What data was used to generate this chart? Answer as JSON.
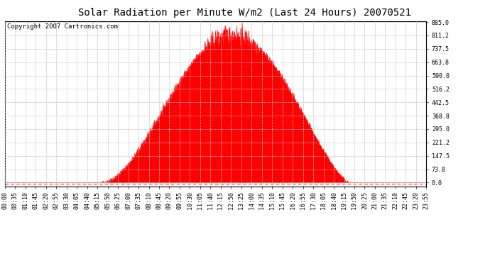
{
  "title": "Solar Radiation per Minute W/m2 (Last 24 Hours) 20070521",
  "copyright": "Copyright 2007 Cartronics.com",
  "background_color": "#ffffff",
  "plot_bg_color": "#ffffff",
  "fill_color": "#ff0000",
  "line_color": "#ff0000",
  "grid_color": "#c0c0c0",
  "dashed_line_color": "#ff0000",
  "yticks": [
    0.0,
    73.8,
    147.5,
    221.2,
    295.0,
    368.8,
    442.5,
    516.2,
    590.0,
    663.8,
    737.5,
    811.2,
    885.0
  ],
  "ymax": 885.0,
  "ymin": 0,
  "title_fontsize": 10,
  "copyright_fontsize": 6.5,
  "tick_fontsize": 6,
  "peak_value": 885.0,
  "sunrise_minute": 330,
  "sunset_minute": 1175,
  "peak_minute": 775,
  "total_minutes": 1440,
  "xtick_labels": [
    "00:00",
    "00:35",
    "01:10",
    "01:45",
    "02:20",
    "02:55",
    "03:30",
    "04:05",
    "04:40",
    "05:15",
    "05:50",
    "06:25",
    "07:00",
    "07:35",
    "08:10",
    "08:45",
    "09:20",
    "09:55",
    "10:30",
    "11:05",
    "11:40",
    "12:15",
    "12:50",
    "13:25",
    "14:00",
    "14:35",
    "15:10",
    "15:45",
    "16:20",
    "16:55",
    "17:30",
    "18:05",
    "18:40",
    "19:15",
    "19:50",
    "20:25",
    "21:00",
    "21:35",
    "22:10",
    "22:45",
    "23:20",
    "23:55"
  ]
}
